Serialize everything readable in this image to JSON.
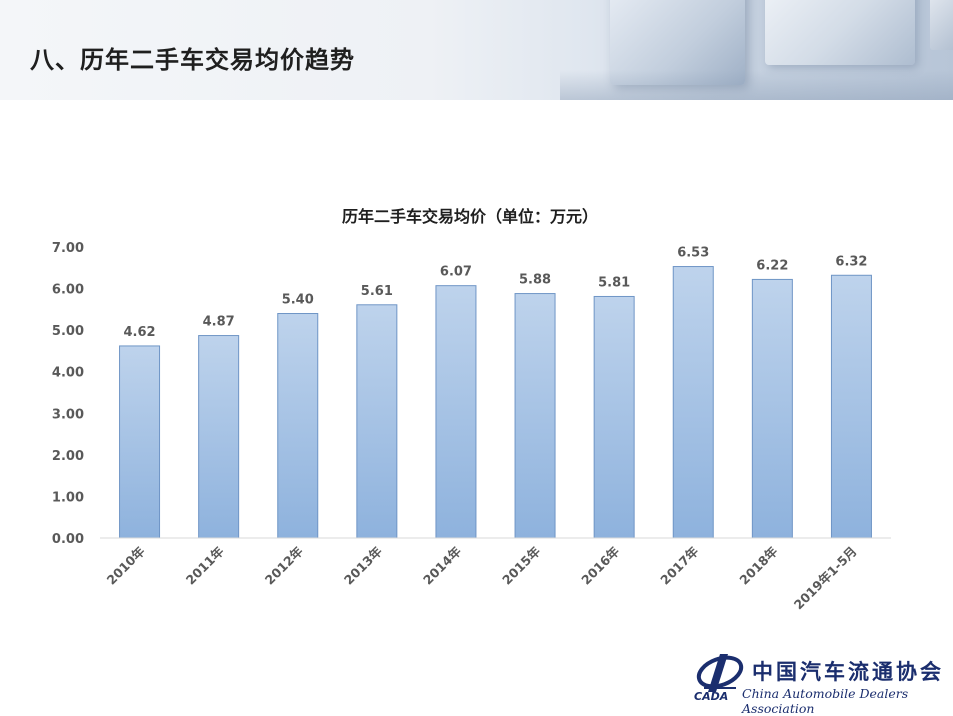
{
  "header": {
    "title": "八、历年二手车交易均价趋势"
  },
  "logo": {
    "name_cn": "中国汽车流通协会",
    "name_en": "China Automobile Dealers Association",
    "abbr": "CADA"
  },
  "colors": {
    "bar_top": "#bed3ec",
    "bar_bottom": "#8eb2dd",
    "bar_stroke": "#6f95c6",
    "label_text": "#595959",
    "axis_line": "#d9d9d9",
    "brand": "#1b2e6e"
  },
  "chart_data": {
    "type": "bar",
    "title": "历年二手车交易均价（单位：万元）",
    "xlabel": "",
    "ylabel": "",
    "categories": [
      "2010年",
      "2011年",
      "2012年",
      "2013年",
      "2014年",
      "2015年",
      "2016年",
      "2017年",
      "2018年",
      "2019年1-5月"
    ],
    "values": [
      4.62,
      4.87,
      5.4,
      5.61,
      6.07,
      5.88,
      5.81,
      6.53,
      6.22,
      6.32
    ],
    "data_labels": [
      "4.62",
      "4.87",
      "5.40",
      "5.61",
      "6.07",
      "5.88",
      "5.81",
      "6.53",
      "6.22",
      "6.32"
    ],
    "ylim": [
      0,
      7
    ],
    "yticks": [
      "0.00",
      "1.00",
      "2.00",
      "3.00",
      "4.00",
      "5.00",
      "6.00",
      "7.00"
    ],
    "grid": false,
    "legend": "none"
  }
}
